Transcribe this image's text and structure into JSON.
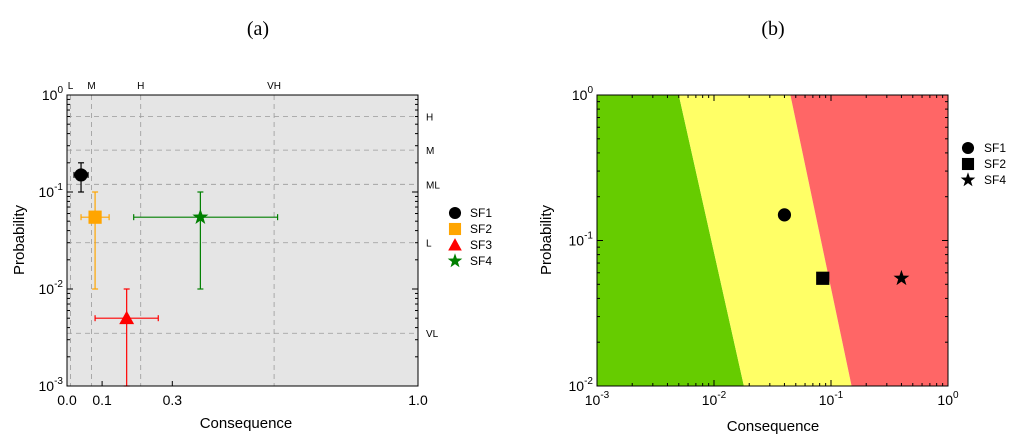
{
  "chart_data": [
    {
      "panel_label": "(a)",
      "type": "scatter",
      "xlabel": "Consequence",
      "ylabel": "Probability",
      "xscale": "linear",
      "yscale": "log",
      "xlim": [
        0.0,
        1.0
      ],
      "ylim": [
        0.001,
        1
      ],
      "x_ticks": [
        {
          "value": 0.0,
          "label": "0.0"
        },
        {
          "value": 0.1,
          "label": "0.1"
        },
        {
          "value": 0.3,
          "label": "0.3"
        },
        {
          "value": 1.0,
          "label": "1.0"
        }
      ],
      "y_ticks": [
        {
          "exp": 0
        },
        {
          "exp": -1
        },
        {
          "exp": -2
        },
        {
          "exp": -3
        }
      ],
      "tick_base": "10",
      "top_labels": [
        {
          "label": "L",
          "value": 0.01
        },
        {
          "label": "M",
          "value": 0.07
        },
        {
          "label": "H",
          "value": 0.21
        },
        {
          "label": "VH",
          "value": 0.59
        }
      ],
      "right_labels": [
        {
          "label": "H",
          "value": 0.6
        },
        {
          "label": "M",
          "value": 0.27
        },
        {
          "label": "ML",
          "value": 0.12
        },
        {
          "label": "L",
          "value": 0.03
        },
        {
          "label": "VL",
          "value": 0.0035
        }
      ],
      "grid": true,
      "background": "#e5e5e5",
      "legend_position": "right",
      "series": [
        {
          "name": "SF1",
          "marker": "circle",
          "color": "#000000",
          "x": 0.04,
          "y": 0.15,
          "x_err": [
            0.02,
            0.06
          ],
          "y_err": [
            0.1,
            0.2
          ]
        },
        {
          "name": "SF2",
          "marker": "square",
          "color": "#ffa500",
          "x": 0.08,
          "y": 0.055,
          "x_err": [
            0.04,
            0.12
          ],
          "y_err": [
            0.01,
            0.1
          ]
        },
        {
          "name": "SF3",
          "marker": "triangle",
          "color": "#ff0000",
          "x": 0.17,
          "y": 0.005,
          "x_err": [
            0.08,
            0.26
          ],
          "y_err": [
            0.001,
            0.01
          ]
        },
        {
          "name": "SF4",
          "marker": "star",
          "color": "#007f00",
          "x": 0.38,
          "y": 0.055,
          "x_err": [
            0.19,
            0.6
          ],
          "y_err": [
            0.01,
            0.1
          ]
        }
      ]
    },
    {
      "panel_label": "(b)",
      "type": "scatter",
      "xlabel": "Consequence",
      "ylabel": "Probability",
      "xscale": "log",
      "yscale": "log",
      "xlim": [
        0.001,
        1
      ],
      "ylim": [
        0.01,
        1
      ],
      "x_ticks": [
        {
          "exp": -3
        },
        {
          "exp": -2
        },
        {
          "exp": -1
        },
        {
          "exp": 0
        }
      ],
      "y_ticks": [
        {
          "exp": 0
        },
        {
          "exp": -1
        },
        {
          "exp": -2
        }
      ],
      "tick_base": "10",
      "regions": [
        {
          "color": "#66cc00",
          "boundary_to_next": [
            [
              0.005,
              1
            ],
            [
              0.018,
              0.01
            ]
          ]
        },
        {
          "color": "#ffff66",
          "boundary_to_next": [
            [
              0.045,
              1
            ],
            [
              0.15,
              0.01
            ]
          ]
        },
        {
          "color": "#ff6666"
        }
      ],
      "legend_position": "right",
      "series": [
        {
          "name": "SF1",
          "marker": "circle",
          "color": "#000000",
          "x": 0.04,
          "y": 0.15
        },
        {
          "name": "SF2",
          "marker": "square",
          "color": "#000000",
          "x": 0.085,
          "y": 0.055
        },
        {
          "name": "SF4",
          "marker": "star",
          "color": "#000000",
          "x": 0.4,
          "y": 0.055
        }
      ]
    }
  ]
}
